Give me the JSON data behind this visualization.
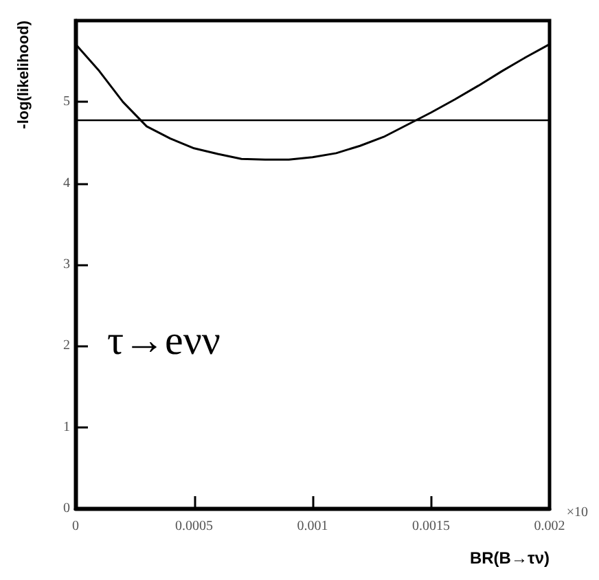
{
  "chart_data": {
    "type": "line",
    "xlabel": "BR(B→τν)",
    "ylabel": "-log(likelihood)",
    "x": [
      0,
      0.0001,
      0.0002,
      0.0003,
      0.0004,
      0.0005,
      0.0006,
      0.0007,
      0.0008,
      0.0009,
      0.001,
      0.0011,
      0.0012,
      0.0013,
      0.0014,
      0.0015,
      0.0016,
      0.0017,
      0.0018,
      0.0019,
      0.002
    ],
    "series": [
      {
        "color": "#000000",
        "values": [
          5.71,
          5.38,
          5.0,
          4.7,
          4.55,
          4.43,
          4.36,
          4.3,
          4.29,
          4.29,
          4.32,
          4.37,
          4.46,
          4.57,
          4.72,
          4.87,
          5.03,
          5.2,
          5.38,
          5.55,
          5.71
        ]
      }
    ],
    "xlim": [
      0,
      0.002
    ],
    "xticks": [
      0,
      0.0005,
      0.001,
      0.0015,
      0.002
    ],
    "ylim": [
      0,
      6
    ],
    "yticks": [
      0,
      1,
      2,
      3,
      4,
      5
    ],
    "ref_lines": [
      {
        "axis": "y",
        "value": 4.78,
        "color": "#000000"
      }
    ],
    "annotations": [
      "τ→eνν",
      "×10"
    ],
    "grid": false,
    "marker": "none",
    "line_style": "solid"
  }
}
